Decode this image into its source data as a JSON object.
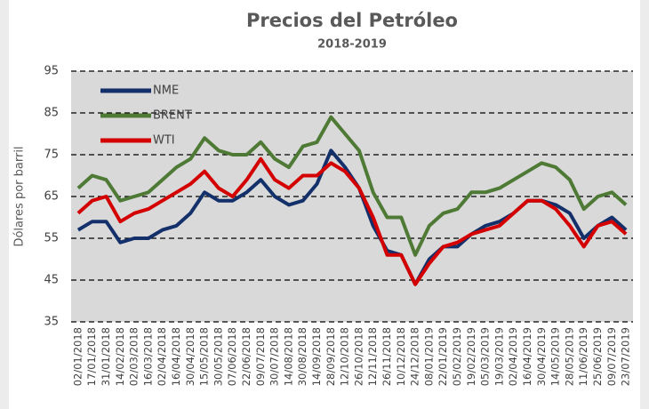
{
  "chart_data": {
    "type": "line",
    "title": "Precios del Petróleo",
    "subtitle": "2018-2019",
    "ylabel": "Dólares por barril",
    "categories": [
      "02/01/2018",
      "17/01/2018",
      "31/01/2018",
      "14/02/2018",
      "02/03/2018",
      "16/03/2018",
      "02/04/2018",
      "16/04/2018",
      "30/04/2018",
      "15/05/2018",
      "30/05/2018",
      "07/06/2018",
      "22/06/2018",
      "09/07/2018",
      "30/07/2018",
      "14/08/2018",
      "30/08/2018",
      "14/09/2018",
      "28/09/2018",
      "12/10/2018",
      "26/10/2018",
      "12/11/2018",
      "26/11/2018",
      "10/12/2018",
      "24/12/2018",
      "08/01/2019",
      "22/01/2019",
      "05/02/2019",
      "19/02/2019",
      "05/03/2019",
      "19/03/2019",
      "02/04/2019",
      "16/04/2019",
      "30/04/2019",
      "14/05/2019",
      "28/05/2019",
      "11/06/2019",
      "25/06/2019",
      "09/07/2019",
      "23/07/2019"
    ],
    "series": [
      {
        "name": "NME",
        "color": "#13306a",
        "values": [
          57,
          59,
          59,
          54,
          55,
          55,
          57,
          58,
          61,
          66,
          64,
          64,
          66,
          69,
          65,
          63,
          64,
          68,
          76,
          72,
          67,
          58,
          52,
          51,
          44,
          50,
          53,
          53,
          56,
          58,
          59,
          61,
          64,
          64,
          63,
          61,
          55,
          58,
          60,
          57
        ]
      },
      {
        "name": "BRENT",
        "color": "#4e7a36",
        "values": [
          67,
          70,
          69,
          64,
          65,
          66,
          69,
          72,
          74,
          79,
          76,
          75,
          75,
          78,
          74,
          72,
          77,
          78,
          84,
          80,
          76,
          66,
          60,
          60,
          51,
          58,
          61,
          62,
          66,
          66,
          67,
          69,
          71,
          73,
          72,
          69,
          62,
          65,
          66,
          63
        ]
      },
      {
        "name": "WTI",
        "color": "#d40000",
        "values": [
          61,
          64,
          65,
          59,
          61,
          62,
          64,
          66,
          68,
          71,
          67,
          65,
          69,
          74,
          69,
          67,
          70,
          70,
          73,
          71,
          67,
          60,
          51,
          51,
          44,
          49,
          53,
          54,
          56,
          57,
          58,
          61,
          64,
          64,
          62,
          58,
          53,
          58,
          59,
          56
        ]
      }
    ],
    "ylim": [
      35,
      95
    ],
    "yticks": [
      35,
      45,
      55,
      65,
      75,
      85,
      95
    ],
    "grid": true,
    "legend": "upper left"
  }
}
